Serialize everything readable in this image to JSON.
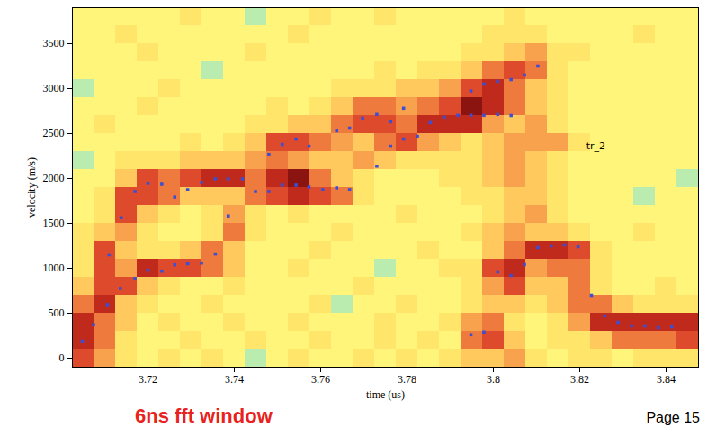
{
  "chart_data": {
    "type": "heatmap",
    "x_label": "time (us)",
    "y_label": "velocity (m/s)",
    "caption": "6ns fft window",
    "footer": "Page 15",
    "xlim": [
      3.7025,
      3.8475
    ],
    "ylim": [
      -100,
      3900
    ],
    "xticks": [
      3.72,
      3.74,
      3.76,
      3.78,
      3.8,
      3.82,
      3.84
    ],
    "yticks": [
      0,
      500,
      1000,
      1500,
      2000,
      2500,
      3000,
      3500
    ],
    "annotations": [
      {
        "text": "tr_2",
        "x": 3.8215,
        "y": 2360
      }
    ],
    "cells": {
      "x": [
        3.705,
        3.71,
        3.715,
        3.72,
        3.725,
        3.73,
        3.735,
        3.74,
        3.745,
        3.75,
        3.755,
        3.76,
        3.765,
        3.77,
        3.775,
        3.78,
        3.785,
        3.79,
        3.795,
        3.8,
        3.805,
        3.81,
        3.815,
        3.82,
        3.825,
        3.83,
        3.835,
        3.84,
        3.845
      ],
      "y": [
        0,
        200,
        400,
        600,
        800,
        1000,
        1200,
        1400,
        1600,
        1800,
        2000,
        2200,
        2400,
        2600,
        2800,
        3000,
        3200,
        3400,
        3600,
        3800
      ],
      "zlim": [
        0,
        9
      ],
      "z": [
        [
          7,
          5,
          3,
          2,
          3,
          2,
          3,
          2,
          1,
          2,
          3,
          2,
          2,
          3,
          2,
          3,
          2,
          3,
          4,
          4,
          5,
          3,
          2,
          3,
          3,
          2,
          3,
          3,
          3
        ],
        [
          8,
          6,
          3,
          2,
          2,
          3,
          2,
          2,
          3,
          2,
          2,
          3,
          2,
          2,
          3,
          2,
          3,
          2,
          6,
          7,
          4,
          2,
          3,
          3,
          4,
          6,
          6,
          6,
          7
        ],
        [
          8,
          6,
          4,
          2,
          3,
          2,
          2,
          3,
          2,
          2,
          3,
          2,
          2,
          2,
          3,
          2,
          2,
          3,
          5,
          6,
          3,
          2,
          3,
          5,
          8,
          8,
          8,
          8,
          8
        ],
        [
          6,
          8,
          4,
          3,
          2,
          2,
          3,
          2,
          2,
          2,
          2,
          3,
          1,
          2,
          2,
          3,
          2,
          2,
          3,
          4,
          4,
          3,
          4,
          6,
          6,
          4,
          3,
          3,
          3
        ],
        [
          4,
          7,
          7,
          4,
          3,
          2,
          2,
          3,
          2,
          2,
          2,
          2,
          2,
          3,
          2,
          2,
          2,
          2,
          3,
          5,
          7,
          4,
          4,
          6,
          3,
          2,
          2,
          3,
          2
        ],
        [
          3,
          7,
          5,
          8,
          7,
          7,
          6,
          4,
          2,
          2,
          3,
          2,
          2,
          2,
          1,
          2,
          2,
          3,
          3,
          7,
          8,
          5,
          6,
          6,
          3,
          2,
          2,
          2,
          2
        ],
        [
          3,
          7,
          4,
          3,
          3,
          4,
          6,
          4,
          2,
          2,
          2,
          3,
          2,
          2,
          2,
          2,
          3,
          2,
          2,
          4,
          6,
          8,
          8,
          7,
          3,
          2,
          2,
          2,
          2
        ],
        [
          3,
          4,
          5,
          3,
          2,
          2,
          3,
          6,
          3,
          2,
          2,
          2,
          3,
          2,
          2,
          2,
          2,
          2,
          3,
          4,
          5,
          4,
          4,
          3,
          2,
          2,
          3,
          2,
          2
        ],
        [
          2,
          3,
          7,
          4,
          3,
          2,
          3,
          5,
          3,
          2,
          3,
          2,
          2,
          2,
          2,
          3,
          2,
          2,
          2,
          3,
          4,
          5,
          3,
          2,
          2,
          2,
          2,
          2,
          2
        ],
        [
          2,
          3,
          7,
          7,
          6,
          4,
          4,
          4,
          6,
          7,
          8,
          7,
          6,
          3,
          2,
          2,
          2,
          2,
          3,
          3,
          4,
          4,
          3,
          2,
          2,
          2,
          1,
          2,
          2
        ],
        [
          2,
          2,
          4,
          7,
          6,
          7,
          8,
          8,
          6,
          8,
          9,
          6,
          4,
          3,
          2,
          2,
          2,
          3,
          3,
          4,
          5,
          4,
          3,
          2,
          2,
          2,
          2,
          2,
          1
        ],
        [
          1,
          2,
          3,
          3,
          3,
          4,
          4,
          4,
          5,
          6,
          5,
          4,
          4,
          5,
          4,
          3,
          3,
          3,
          3,
          4,
          5,
          4,
          3,
          2,
          2,
          2,
          2,
          2,
          2
        ],
        [
          2,
          2,
          2,
          2,
          2,
          3,
          2,
          3,
          4,
          7,
          7,
          6,
          5,
          4,
          6,
          7,
          5,
          4,
          3,
          4,
          5,
          5,
          5,
          3,
          2,
          2,
          2,
          2,
          2
        ],
        [
          2,
          3,
          2,
          2,
          2,
          2,
          2,
          2,
          3,
          3,
          4,
          4,
          6,
          7,
          7,
          6,
          8,
          8,
          8,
          5,
          4,
          5,
          3,
          2,
          2,
          2,
          2,
          2,
          2
        ],
        [
          2,
          2,
          2,
          3,
          2,
          2,
          2,
          2,
          2,
          3,
          2,
          3,
          4,
          6,
          6,
          5,
          6,
          7,
          9,
          8,
          6,
          4,
          3,
          2,
          2,
          2,
          2,
          2,
          2
        ],
        [
          1,
          2,
          2,
          2,
          3,
          2,
          2,
          2,
          2,
          2,
          2,
          2,
          3,
          3,
          3,
          4,
          4,
          5,
          7,
          8,
          6,
          4,
          3,
          2,
          2,
          2,
          2,
          2,
          2
        ],
        [
          2,
          2,
          2,
          2,
          2,
          2,
          1,
          2,
          2,
          2,
          2,
          2,
          2,
          2,
          3,
          2,
          3,
          3,
          4,
          6,
          7,
          6,
          3,
          2,
          2,
          2,
          2,
          2,
          2
        ],
        [
          2,
          2,
          2,
          3,
          2,
          2,
          2,
          2,
          3,
          2,
          2,
          2,
          2,
          2,
          2,
          2,
          2,
          2,
          3,
          3,
          4,
          5,
          3,
          3,
          2,
          2,
          2,
          2,
          2
        ],
        [
          2,
          2,
          3,
          2,
          2,
          2,
          2,
          2,
          2,
          2,
          3,
          2,
          2,
          2,
          2,
          2,
          2,
          2,
          2,
          3,
          3,
          3,
          2,
          2,
          2,
          2,
          3,
          2,
          2
        ],
        [
          2,
          2,
          2,
          2,
          2,
          3,
          2,
          2,
          1,
          2,
          2,
          3,
          2,
          2,
          3,
          2,
          2,
          2,
          2,
          2,
          3,
          2,
          2,
          2,
          2,
          2,
          2,
          2,
          2
        ]
      ]
    },
    "markers": {
      "color": "#3b4fd6",
      "marker": "square",
      "x": [
        3.7048,
        3.7074,
        3.7106,
        3.711,
        3.7136,
        3.7138,
        3.717,
        3.717,
        3.72,
        3.72,
        3.7232,
        3.7232,
        3.7262,
        3.7262,
        3.7292,
        3.7292,
        3.7324,
        3.7324,
        3.7356,
        3.7356,
        3.7386,
        3.7386,
        3.7419,
        3.7449,
        3.748,
        3.748,
        3.7511,
        3.7511,
        3.7543,
        3.7543,
        3.7573,
        3.7573,
        3.7605,
        3.7637,
        3.7637,
        3.7667,
        3.7667,
        3.7697,
        3.773,
        3.773,
        3.7762,
        3.7762,
        3.7792,
        3.7792,
        3.7824,
        3.7854,
        3.7886,
        3.7918,
        3.7948,
        3.7948,
        3.7948,
        3.7978,
        3.7978,
        3.7978,
        3.801,
        3.801,
        3.801,
        3.8041,
        3.8041,
        3.8041,
        3.8072,
        3.8072,
        3.8103,
        3.8103,
        3.8134,
        3.8165,
        3.8196,
        3.8227,
        3.8258,
        3.8289,
        3.832,
        3.8351,
        3.8382,
        3.8413
      ],
      "y": [
        190,
        373,
        595,
        1150,
        776,
        1563,
        887,
        1855,
        978,
        1946,
        1935,
        968,
        1794,
        1038,
        1875,
        1050,
        1956,
        1058,
        1159,
        1996,
        1583,
        1996,
        1996,
        1855,
        1855,
        2268,
        2379,
        1925,
        2439,
        1925,
        2359,
        1905,
        1875,
        2530,
        1895,
        2560,
        1875,
        2671,
        2712,
        2137,
        2631,
        2359,
        2782,
        2439,
        2470,
        2621,
        2681,
        2702,
        2974,
        2702,
        262,
        3050,
        2702,
        292,
        3080,
        2712,
        960,
        3100,
        2700,
        920,
        3150,
        1040,
        3250,
        1230,
        1250,
        1260,
        1240,
        700,
        470,
        400,
        360,
        360,
        340,
        350
      ]
    }
  }
}
